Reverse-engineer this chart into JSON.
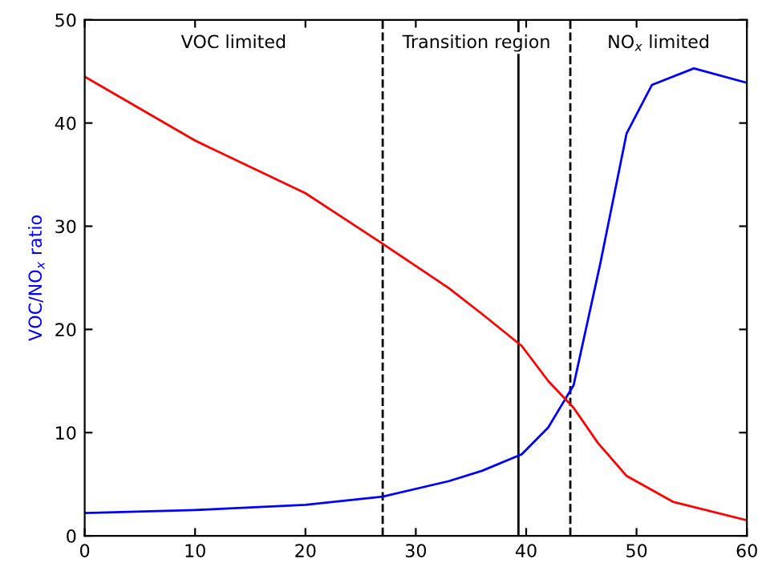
{
  "chart_data": {
    "type": "line",
    "ylabel": "VOC/NO$_{x}$ ratio",
    "series": [
      {
        "color": "#0000ff",
        "x": [
          0,
          10,
          20,
          27,
          33,
          36,
          39.6,
          42,
          44.3,
          46.7,
          49.1,
          51.4,
          55.2,
          60
        ],
        "values": [
          2.2,
          2.5,
          3.0,
          3.8,
          5.3,
          6.3,
          7.9,
          10.5,
          14.6,
          26.3,
          39.0,
          43.7,
          45.3,
          43.9
        ]
      },
      {
        "color": "#ff0000",
        "x": [
          0,
          10,
          20,
          27,
          33,
          36,
          39.6,
          42,
          44.3,
          46.5,
          49.1,
          53.3,
          60
        ],
        "values": [
          44.5,
          38.3,
          33.2,
          28.3,
          24.0,
          21.5,
          18.4,
          15.0,
          12.4,
          9.0,
          5.8,
          3.3,
          1.5
        ]
      }
    ],
    "xlim": [
      0,
      60
    ],
    "xticks": [
      0,
      10,
      20,
      30,
      40,
      50,
      60
    ],
    "ylim": [
      0,
      50
    ],
    "yticks": [
      0,
      10,
      20,
      30,
      40,
      50
    ],
    "ref_lines": [
      {
        "axis": "x",
        "value": 27,
        "line_style": "dashed",
        "color": "#000000"
      },
      {
        "axis": "x",
        "value": 39.3,
        "line_style": "solid",
        "color": "#000000"
      },
      {
        "axis": "x",
        "value": 44,
        "line_style": "dashed",
        "color": "#000000"
      }
    ],
    "annotations": [
      "VOC limited",
      "Transition region",
      "NO$_{x}$ limited"
    ],
    "grid": false,
    "legend": false
  }
}
